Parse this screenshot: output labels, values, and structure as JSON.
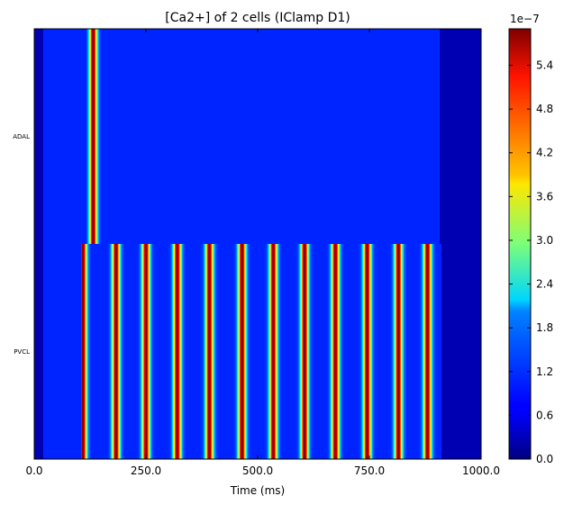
{
  "chart_data": {
    "type": "heatmap",
    "title": "[Ca2+] of 2 cells (IClamp D1)",
    "xlabel": "Time (ms)",
    "xlim": [
      0,
      1000
    ],
    "xticks": [
      0,
      250,
      500,
      750,
      1000
    ],
    "xtick_labels": [
      "0.0",
      "250.0",
      "500.0",
      "750.0",
      "1000.0"
    ],
    "rows": [
      {
        "name": "ADAL",
        "peak_times_ms": [
          132
        ],
        "active_range_ms": [
          117,
          152
        ]
      },
      {
        "name": "PVCL",
        "peak_times_ms": [
          109,
          183,
          250,
          320,
          392,
          465,
          535,
          605,
          674,
          745,
          815,
          880
        ],
        "active_range_ms": [
          104,
          912
        ]
      }
    ],
    "baseline_light_range_ms": [
      20,
      908
    ],
    "colorbar": {
      "colormap": "jet",
      "range": [
        0,
        5.9
      ],
      "ticks": [
        0.0,
        0.6,
        1.2,
        1.8,
        2.4,
        3.0,
        3.6,
        4.2,
        4.8,
        5.4
      ],
      "tick_labels": [
        "0.0",
        "0.6",
        "1.2",
        "1.8",
        "2.4",
        "3.0",
        "3.6",
        "4.2",
        "4.8",
        "5.4"
      ],
      "offset_label": "1e−7"
    }
  }
}
